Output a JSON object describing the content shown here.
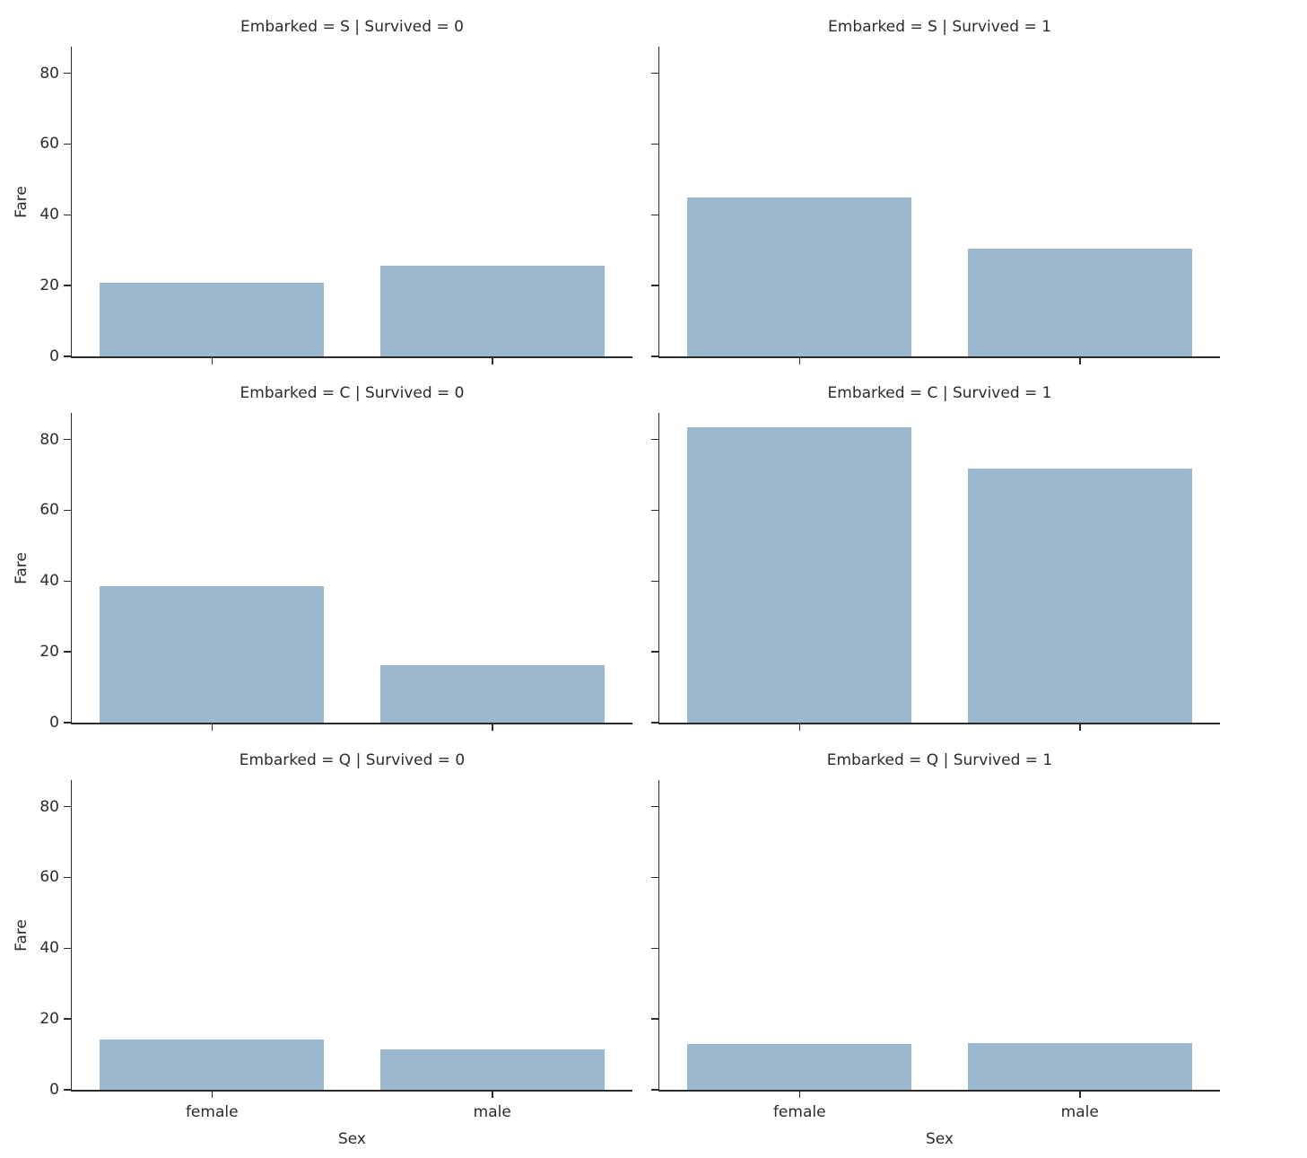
{
  "figure": {
    "bar_color": "#9cb8ce",
    "axis_color": "#2b2b2b",
    "text_color": "#2b2b2b"
  },
  "chart_data": {
    "type": "bar",
    "facet": {
      "row_variable": "Embarked",
      "row_values": [
        "S",
        "C",
        "Q"
      ],
      "col_variable": "Survived",
      "col_values": [
        "0",
        "1"
      ]
    },
    "categories": [
      "female",
      "male"
    ],
    "xlabel": "Sex",
    "ylabel": "Fare",
    "ylim": [
      0,
      87.5
    ],
    "y_ticks": [
      0,
      20,
      40,
      60,
      80
    ],
    "grid": false,
    "legend": "none",
    "bar_color": "#9cb8ce",
    "panels": [
      {
        "title": "Embarked = S | Survived = 0",
        "embarked": "S",
        "survived": "0",
        "values": [
          20.7,
          25.7
        ]
      },
      {
        "title": "Embarked = S | Survived = 1",
        "embarked": "S",
        "survived": "1",
        "values": [
          44.9,
          30.4
        ]
      },
      {
        "title": "Embarked = C | Survived = 0",
        "embarked": "C",
        "survived": "0",
        "values": [
          38.5,
          16.3
        ]
      },
      {
        "title": "Embarked = C | Survived = 1",
        "embarked": "C",
        "survived": "1",
        "values": [
          83.5,
          71.8
        ]
      },
      {
        "title": "Embarked = Q | Survived = 0",
        "embarked": "Q",
        "survived": "0",
        "values": [
          14.3,
          11.4
        ]
      },
      {
        "title": "Embarked = Q | Survived = 1",
        "embarked": "Q",
        "survived": "1",
        "values": [
          13.0,
          13.2
        ]
      }
    ]
  }
}
